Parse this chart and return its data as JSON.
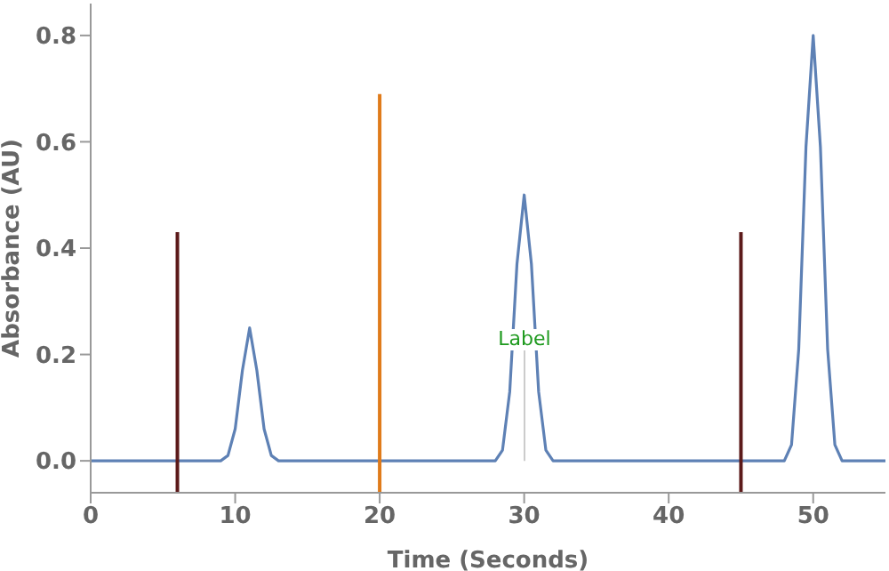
{
  "chart_data": {
    "type": "line",
    "xlabel": "Time  (Seconds)",
    "ylabel": "Absorbance  (AU)",
    "xlim": [
      0,
      55
    ],
    "xticks": [
      0,
      10,
      20,
      30,
      40,
      50
    ],
    "ylim": [
      -0.06,
      0.86
    ],
    "yticks": [
      {
        "value": 0,
        "label": "0.0"
      },
      {
        "value": 0.2,
        "label": "0.2"
      },
      {
        "value": 0.4,
        "label": "0.4"
      },
      {
        "value": 0.6,
        "label": "0.6"
      },
      {
        "value": 0.8,
        "label": "0.8"
      }
    ],
    "grid": false,
    "legend": false,
    "marker": "none",
    "line_style": "solid",
    "series": [
      {
        "color": "#5e81b5",
        "x": [
          0,
          9,
          9.5,
          10,
          10.5,
          11,
          11.5,
          12,
          12.5,
          13,
          28,
          28.5,
          29,
          29.5,
          30,
          30.5,
          31,
          31.5,
          32,
          48,
          48.5,
          49,
          49.5,
          50,
          50.5,
          51,
          51.5,
          52,
          55
        ],
        "values": [
          0,
          0,
          0.01,
          0.06,
          0.17,
          0.25,
          0.17,
          0.06,
          0.01,
          0,
          0,
          0.02,
          0.13,
          0.37,
          0.5,
          0.37,
          0.13,
          0.02,
          0,
          0,
          0.03,
          0.21,
          0.59,
          0.8,
          0.59,
          0.21,
          0.03,
          0,
          0
        ]
      },
      {
        "color": "#5c1a1a",
        "x": [
          6,
          6
        ],
        "values": [
          -0.06,
          0.43
        ]
      },
      {
        "color": "#e07b1a",
        "x": [
          20,
          20
        ],
        "values": [
          -0.06,
          0.69
        ]
      },
      {
        "color": "#5c1a1a",
        "x": [
          45,
          45
        ],
        "values": [
          -0.06,
          0.43
        ]
      }
    ],
    "annotations": [
      "Label"
    ]
  }
}
